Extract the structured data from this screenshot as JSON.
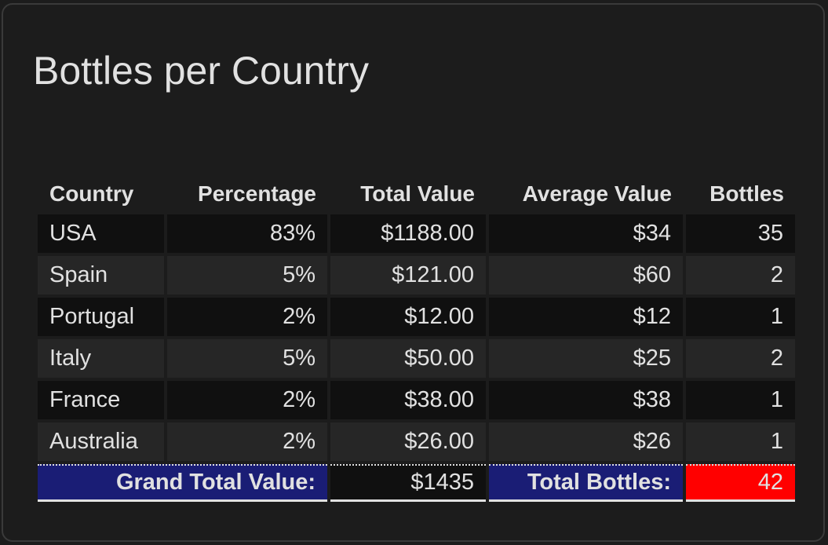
{
  "card": {
    "title": "Bottles per Country"
  },
  "table": {
    "headers": {
      "country": "Country",
      "percentage": "Percentage",
      "total_value": "Total Value",
      "average_value": "Average Value",
      "bottles": "Bottles"
    },
    "rows": [
      {
        "country": "USA",
        "percentage": "83%",
        "total_value": "$1188.00",
        "average_value": "$34",
        "bottles": "35"
      },
      {
        "country": "Spain",
        "percentage": "5%",
        "total_value": "$121.00",
        "average_value": "$60",
        "bottles": "2"
      },
      {
        "country": "Portugal",
        "percentage": "2%",
        "total_value": "$12.00",
        "average_value": "$12",
        "bottles": "1"
      },
      {
        "country": "Italy",
        "percentage": "5%",
        "total_value": "$50.00",
        "average_value": "$25",
        "bottles": "2"
      },
      {
        "country": "France",
        "percentage": "2%",
        "total_value": "$38.00",
        "average_value": "$38",
        "bottles": "1"
      },
      {
        "country": "Australia",
        "percentage": "2%",
        "total_value": "$26.00",
        "average_value": "$26",
        "bottles": "1"
      }
    ],
    "totals": {
      "grand_total_label": "Grand Total Value:",
      "grand_total_value": "$1435",
      "total_bottles_label": "Total Bottles:",
      "total_bottles_value": "42"
    }
  },
  "colors": {
    "background": "#1c1c1c",
    "row_dark": "#101010",
    "row_light": "#262626",
    "label_highlight": "#1a1d75",
    "value_highlight": "#ff0000",
    "text": "#e1e1e1"
  }
}
